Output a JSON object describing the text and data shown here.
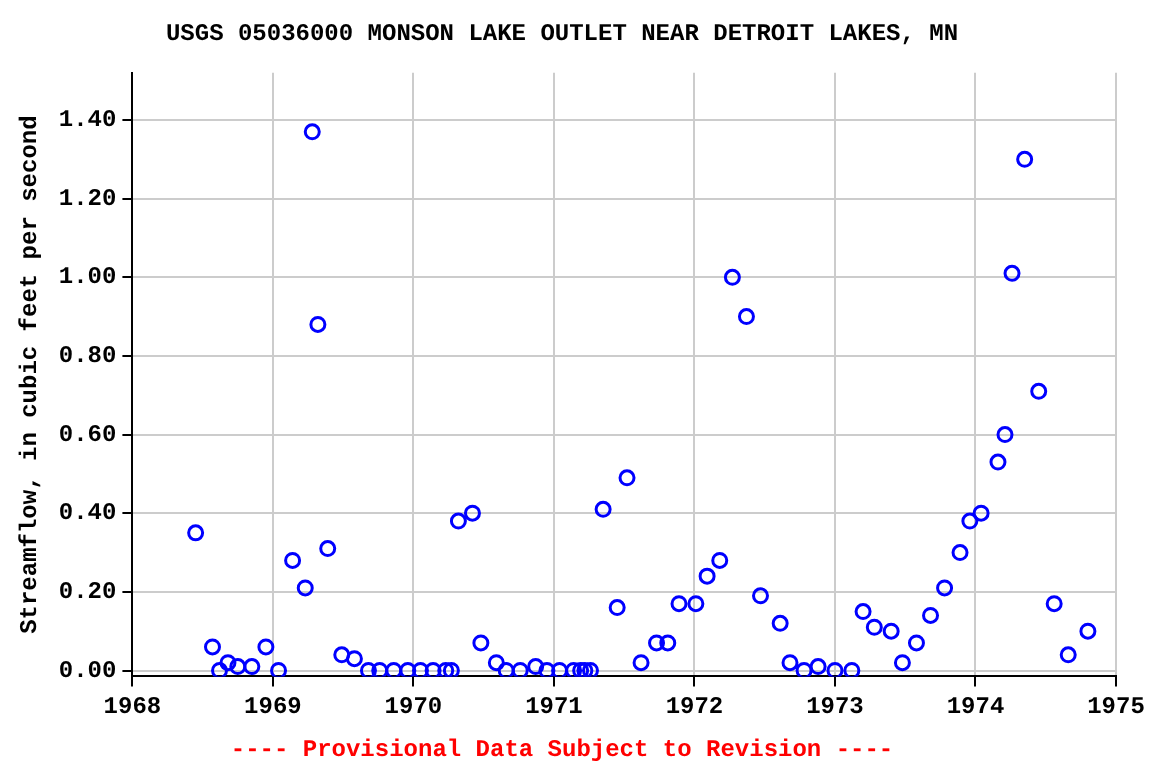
{
  "chart_data": {
    "type": "scatter",
    "title": "USGS 05036000 MONSON LAKE OUTLET NEAR DETROIT LAKES, MN",
    "ylabel": "Streamflow, in cubic feet per second",
    "annotations": [
      "---- Provisional Data Subject to Revision ----"
    ],
    "x": [
      1968.45,
      1968.57,
      1968.62,
      1968.68,
      1968.75,
      1968.85,
      1968.95,
      1969.04,
      1969.14,
      1969.23,
      1969.28,
      1969.32,
      1969.39,
      1969.49,
      1969.58,
      1969.68,
      1969.76,
      1969.86,
      1969.96,
      1970.05,
      1970.14,
      1970.23,
      1970.27,
      1970.32,
      1970.42,
      1970.48,
      1970.59,
      1970.66,
      1970.76,
      1970.87,
      1970.95,
      1971.04,
      1971.14,
      1971.19,
      1971.22,
      1971.26,
      1971.35,
      1971.45,
      1971.52,
      1971.62,
      1971.73,
      1971.81,
      1971.89,
      1972.01,
      1972.09,
      1972.18,
      1972.27,
      1972.37,
      1972.47,
      1972.61,
      1972.68,
      1972.78,
      1972.88,
      1973.0,
      1973.12,
      1973.2,
      1973.28,
      1973.4,
      1973.48,
      1973.58,
      1973.68,
      1973.78,
      1973.89,
      1973.96,
      1974.04,
      1974.16,
      1974.21,
      1974.26,
      1974.35,
      1974.45,
      1974.56,
      1974.66,
      1974.8
    ],
    "series": [
      {
        "color": "#0000ff",
        "values": [
          0.35,
          0.06,
          0.0,
          0.02,
          0.01,
          0.01,
          0.06,
          0.0,
          0.28,
          0.21,
          1.37,
          0.88,
          0.31,
          0.04,
          0.03,
          0.0,
          0.0,
          0.0,
          0.0,
          0.0,
          0.0,
          0.0,
          0.0,
          0.38,
          0.4,
          0.07,
          0.02,
          0.0,
          0.0,
          0.01,
          0.0,
          0.0,
          0.0,
          0.0,
          0.0,
          0.0,
          0.41,
          0.16,
          0.49,
          0.02,
          0.07,
          0.07,
          0.17,
          0.17,
          0.24,
          0.28,
          1.0,
          0.9,
          0.19,
          0.12,
          0.02,
          0.0,
          0.01,
          0.0,
          0.0,
          0.15,
          0.11,
          0.1,
          0.02,
          0.07,
          0.14,
          0.21,
          0.3,
          0.38,
          0.4,
          0.53,
          0.6,
          1.01,
          1.3,
          0.71,
          0.17,
          0.04,
          0.1
        ]
      }
    ],
    "xlim": [
      1968,
      1975
    ],
    "xticks": [
      1968,
      1969,
      1970,
      1971,
      1972,
      1973,
      1974,
      1975
    ],
    "ylim": [
      -0.015,
      1.52
    ],
    "yticks": [
      {
        "value": 0,
        "label": "0.00"
      },
      {
        "value": 0.2,
        "label": "0.20"
      },
      {
        "value": 0.4,
        "label": "0.40"
      },
      {
        "value": 0.6,
        "label": "0.60"
      },
      {
        "value": 0.8,
        "label": "0.80"
      },
      {
        "value": 1.0,
        "label": "1.00"
      },
      {
        "value": 1.2,
        "label": "1.20"
      },
      {
        "value": 1.4,
        "label": "1.40"
      }
    ],
    "grid": true,
    "marker": "circle",
    "legend": false
  }
}
